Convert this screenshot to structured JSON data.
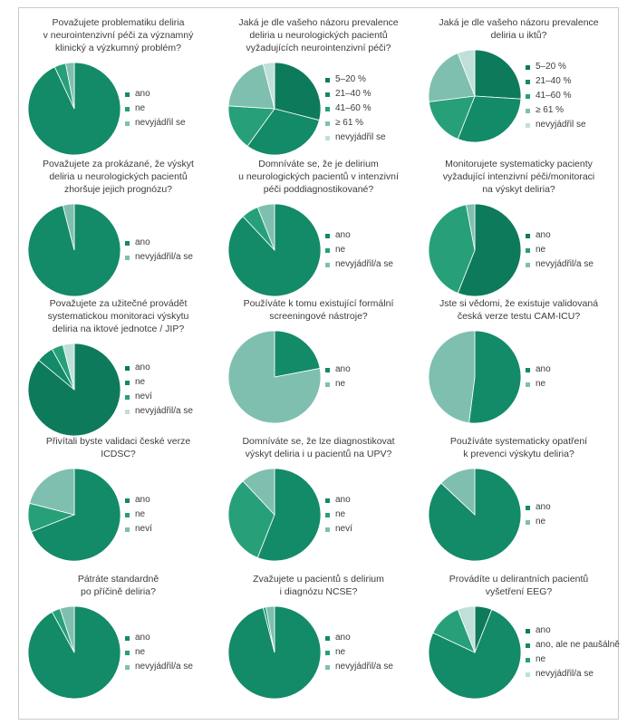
{
  "colors": {
    "c1": "#0e7a5c",
    "c2": "#138a68",
    "c3": "#27a07a",
    "c4": "#7fbfb0",
    "c5": "#bfe0d8"
  },
  "chart_data": [
    {
      "type": "pie",
      "title": "Považujete problematiku deliria\nv neurointenzivní péči za významný\nklinický a výzkumný problém?",
      "labels": [
        "ano",
        "ne",
        "nevyjádřil se"
      ],
      "values": [
        93,
        4,
        3
      ],
      "colors": [
        "c2",
        "c3",
        "c4"
      ]
    },
    {
      "type": "pie",
      "title": "Jaká je dle vašeho názoru prevalence\ndeliria u neurologických pacientů\nvyžadujících neurointenzivní péči?",
      "labels": [
        "5–20 %",
        "21–40 %",
        "41–60 %",
        "≥ 61 %",
        "nevyjádřil se"
      ],
      "values": [
        29,
        31,
        16,
        20,
        4
      ],
      "colors": [
        "c1",
        "c2",
        "c3",
        "c4",
        "c5"
      ]
    },
    {
      "type": "pie",
      "title": "Jaká je dle vašeho názoru prevalence\ndeliria u iktů?",
      "labels": [
        "5–20 %",
        "21–40 %",
        "41–60 %",
        "≥ 61 %",
        "nevyjádřil se"
      ],
      "values": [
        26,
        30,
        17,
        21,
        6
      ],
      "colors": [
        "c1",
        "c2",
        "c3",
        "c4",
        "c5"
      ]
    },
    {
      "type": "pie",
      "title": "Považujete za prokázané, že výskyt\ndeliria u neurologických pacientů\nzhoršuje jejich prognózu?",
      "labels": [
        "ano",
        "nevyjádřil/a se"
      ],
      "values": [
        96,
        4
      ],
      "colors": [
        "c2",
        "c4"
      ]
    },
    {
      "type": "pie",
      "title": "Domníváte se, že je delirium\nu neurologických pacientů v intenzivní\npéči poddiagnostikované?",
      "labels": [
        "ano",
        "ne",
        "nevyjádřil/a se"
      ],
      "values": [
        88,
        6,
        6
      ],
      "colors": [
        "c2",
        "c3",
        "c4"
      ]
    },
    {
      "type": "pie",
      "title": "Monitorujete systematicky pacienty\nvyžadující intenzivní péči/monitoraci\nna výskyt deliria?",
      "labels": [
        "ano",
        "ne",
        "nevyjádřil/a se"
      ],
      "values": [
        56,
        41,
        3
      ],
      "colors": [
        "c1",
        "c3",
        "c4"
      ]
    },
    {
      "type": "pie",
      "title": "Považujete za užitečné provádět\nsystematickou monitoraci výskytu\ndeliria na iktové jednotce / JIP?",
      "labels": [
        "ano",
        "ne",
        "neví",
        "nevyjádřil/a se"
      ],
      "values": [
        86,
        6,
        4,
        4
      ],
      "colors": [
        "c1",
        "c2",
        "c3",
        "c5"
      ]
    },
    {
      "type": "pie",
      "title": "Používáte k tomu existující formální\nscreeningové nástroje?",
      "labels": [
        "ano",
        "ne"
      ],
      "values": [
        22,
        78
      ],
      "colors": [
        "c2",
        "c4"
      ]
    },
    {
      "type": "pie",
      "title": "Jste si vědomi, že existuje validovaná\nčeská verze testu CAM-ICU?",
      "labels": [
        "ano",
        "ne"
      ],
      "values": [
        52,
        48
      ],
      "colors": [
        "c2",
        "c4"
      ]
    },
    {
      "type": "pie",
      "title": "Přivítali byste validaci české verze\nICDSC?",
      "labels": [
        "ano",
        "ne",
        "neví"
      ],
      "values": [
        69,
        10,
        21
      ],
      "colors": [
        "c2",
        "c3",
        "c4"
      ]
    },
    {
      "type": "pie",
      "title": "Domníváte se, že lze diagnostikovat\nvýskyt deliria i u pacientů na UPV?",
      "labels": [
        "ano",
        "ne",
        "neví"
      ],
      "values": [
        56,
        32,
        12
      ],
      "colors": [
        "c2",
        "c3",
        "c4"
      ]
    },
    {
      "type": "pie",
      "title": "Používáte systematicky opatření\nk prevenci výskytu deliria?",
      "labels": [
        "ano",
        "ne"
      ],
      "values": [
        87,
        13
      ],
      "colors": [
        "c2",
        "c4"
      ]
    },
    {
      "type": "pie",
      "title": "Pátráte standardně\npo příčině deliria?",
      "labels": [
        "ano",
        "ne",
        "nevyjádřil/a se"
      ],
      "values": [
        92,
        3,
        5
      ],
      "colors": [
        "c2",
        "c3",
        "c4"
      ]
    },
    {
      "type": "pie",
      "title": "Zvažujete u pacientů s delirium\ni diagnózu NCSE?",
      "labels": [
        "ano",
        "ne",
        "nevyjádřil/a se"
      ],
      "values": [
        96,
        1,
        3
      ],
      "colors": [
        "c2",
        "c3",
        "c4"
      ]
    },
    {
      "type": "pie",
      "title": "Provádíte u delirantních pacientů\nvyšetření EEG?",
      "labels": [
        "ano",
        "ano, ale ne paušálně",
        "ne",
        "nevyjádřil/a se"
      ],
      "values": [
        6,
        76,
        12,
        6
      ],
      "colors": [
        "c1",
        "c2",
        "c3",
        "c5"
      ]
    }
  ]
}
